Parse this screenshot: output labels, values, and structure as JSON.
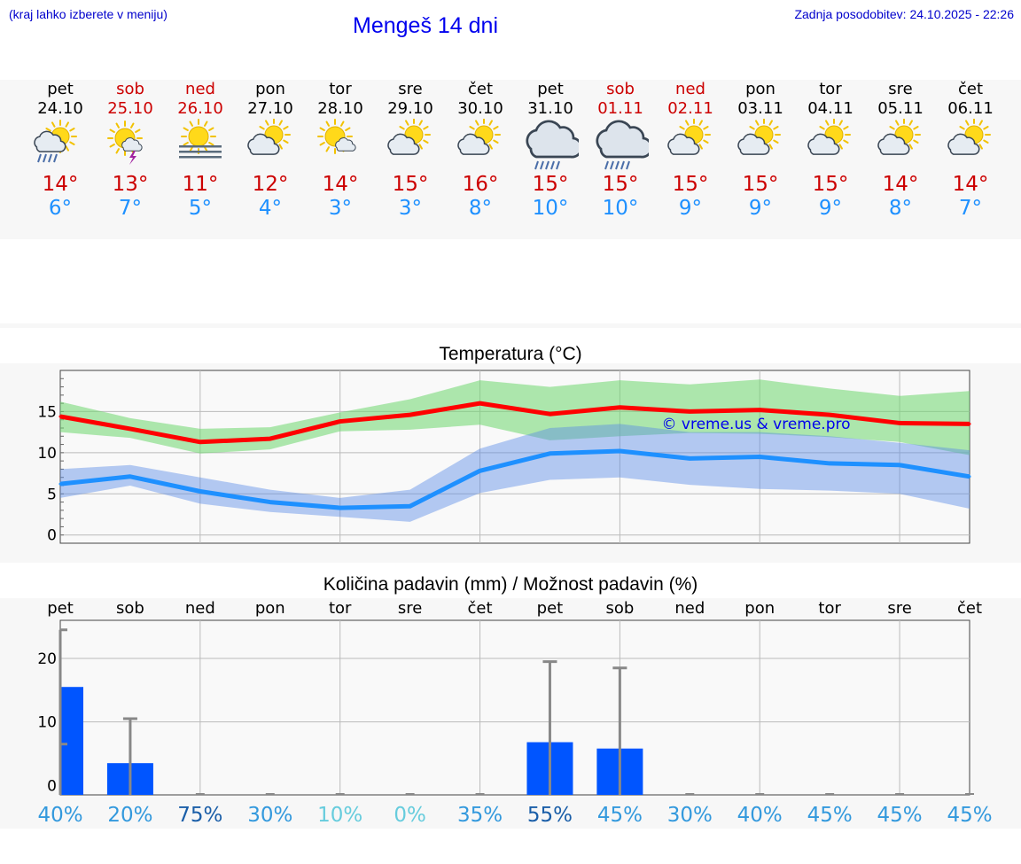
{
  "header": {
    "hint": "(kraj lahko izberete v meniju)",
    "title": "Mengeš 14 dni",
    "updated": "Zadnja posodobitev: 24.10.2025 - 22:26"
  },
  "colors": {
    "weekday": "#000000",
    "weekend": "#cc0000",
    "max": "#cc0000",
    "min": "#1e90ff",
    "bar": "#0055ff"
  },
  "days": [
    {
      "name": "pet",
      "date": "24.10",
      "weekend": false,
      "icon": "sun-cloud-rain-icon",
      "hi": "14°",
      "lo": "6°"
    },
    {
      "name": "sob",
      "date": "25.10",
      "weekend": true,
      "icon": "sun-thunder-icon",
      "hi": "13°",
      "lo": "7°"
    },
    {
      "name": "ned",
      "date": "26.10",
      "weekend": true,
      "icon": "sun-fog-icon",
      "hi": "11°",
      "lo": "5°"
    },
    {
      "name": "pon",
      "date": "27.10",
      "weekend": false,
      "icon": "sun-cloud-icon",
      "hi": "12°",
      "lo": "4°"
    },
    {
      "name": "tor",
      "date": "28.10",
      "weekend": false,
      "icon": "sun-small-cloud-icon",
      "hi": "14°",
      "lo": "3°"
    },
    {
      "name": "sre",
      "date": "29.10",
      "weekend": false,
      "icon": "sun-cloud-icon",
      "hi": "15°",
      "lo": "3°"
    },
    {
      "name": "čet",
      "date": "30.10",
      "weekend": false,
      "icon": "sun-cloud-icon",
      "hi": "16°",
      "lo": "8°"
    },
    {
      "name": "pet",
      "date": "31.10",
      "weekend": false,
      "icon": "cloud-rain-icon",
      "hi": "15°",
      "lo": "10°"
    },
    {
      "name": "sob",
      "date": "01.11",
      "weekend": true,
      "icon": "cloud-rain-icon",
      "hi": "15°",
      "lo": "10°"
    },
    {
      "name": "ned",
      "date": "02.11",
      "weekend": true,
      "icon": "sun-cloud-icon",
      "hi": "15°",
      "lo": "9°"
    },
    {
      "name": "pon",
      "date": "03.11",
      "weekend": false,
      "icon": "sun-cloud-icon",
      "hi": "15°",
      "lo": "9°"
    },
    {
      "name": "tor",
      "date": "04.11",
      "weekend": false,
      "icon": "sun-cloud-icon",
      "hi": "15°",
      "lo": "9°"
    },
    {
      "name": "sre",
      "date": "05.11",
      "weekend": false,
      "icon": "sun-cloud-icon",
      "hi": "14°",
      "lo": "8°"
    },
    {
      "name": "čet",
      "date": "06.11",
      "weekend": false,
      "icon": "sun-cloud-icon",
      "hi": "14°",
      "lo": "7°"
    }
  ],
  "chart_data": [
    {
      "type": "line",
      "title": "Temperatura (°C)",
      "watermark": "© vreme.us & vreme.pro",
      "ylim": [
        -1,
        20
      ],
      "yticks": [
        "0",
        "5",
        "10",
        "15"
      ],
      "x": [
        0,
        1,
        2,
        3,
        4,
        5,
        6,
        7,
        8,
        9,
        10,
        11,
        12,
        13
      ],
      "series": [
        {
          "name": "max",
          "color": "#ff0000",
          "values": [
            14.4,
            12.9,
            11.3,
            11.7,
            13.8,
            14.6,
            16.0,
            14.7,
            15.5,
            15.0,
            15.2,
            14.6,
            13.6,
            13.5
          ]
        },
        {
          "name": "max_upper",
          "values": [
            16.2,
            14.2,
            12.9,
            13.1,
            14.9,
            16.5,
            18.8,
            18.0,
            18.8,
            18.3,
            18.9,
            17.8,
            16.9,
            17.5
          ]
        },
        {
          "name": "max_lower",
          "values": [
            12.5,
            11.8,
            9.9,
            10.4,
            12.6,
            12.8,
            13.4,
            11.5,
            12.0,
            12.4,
            12.3,
            11.9,
            11.3,
            9.7
          ]
        },
        {
          "name": "min",
          "color": "#1e90ff",
          "values": [
            6.2,
            7.1,
            5.3,
            4.0,
            3.3,
            3.5,
            7.8,
            9.9,
            10.2,
            9.3,
            9.5,
            8.7,
            8.5,
            7.1
          ]
        },
        {
          "name": "min_upper",
          "values": [
            8.0,
            8.5,
            7.0,
            5.5,
            4.5,
            5.5,
            10.5,
            13.0,
            13.5,
            12.5,
            12.5,
            12.0,
            11.2,
            10.3
          ]
        },
        {
          "name": "min_lower",
          "values": [
            4.5,
            6.0,
            3.8,
            2.8,
            2.2,
            1.6,
            5.1,
            6.7,
            7.0,
            6.1,
            5.6,
            5.4,
            5.0,
            3.2
          ]
        }
      ]
    },
    {
      "type": "bar",
      "title": "Količina padavin (mm) / Možnost padavin (%)",
      "categories": [
        "pet",
        "sob",
        "ned",
        "pon",
        "tor",
        "sre",
        "čet",
        "pet",
        "sob",
        "ned",
        "pon",
        "tor",
        "sre",
        "čet"
      ],
      "values": [
        15.5,
        3.5,
        0,
        0,
        0,
        0,
        0,
        6.8,
        5.8,
        0,
        0,
        0,
        0,
        0
      ],
      "error_high": [
        24.5,
        10.5,
        0,
        0,
        0,
        0,
        0,
        19.5,
        18.5,
        0,
        0,
        0,
        0,
        0
      ],
      "error_low": [
        6.5,
        0,
        0,
        0,
        0,
        0,
        0,
        0,
        0,
        0,
        0,
        0,
        0,
        0
      ],
      "probability": [
        "40%",
        "20%",
        "75%",
        "30%",
        "10%",
        "0%",
        "35%",
        "55%",
        "45%",
        "30%",
        "40%",
        "45%",
        "45%",
        "45%"
      ],
      "probability_colors": [
        "#3399dd",
        "#3399dd",
        "#1a5ea8",
        "#3399dd",
        "#66ccdd",
        "#66ccdd",
        "#3399dd",
        "#1a5ea8",
        "#3399dd",
        "#3399dd",
        "#3399dd",
        "#3399dd",
        "#3399dd",
        "#3399dd"
      ],
      "ylim": [
        -1.5,
        26
      ],
      "yticks": [
        "0",
        "10",
        "20"
      ]
    }
  ]
}
